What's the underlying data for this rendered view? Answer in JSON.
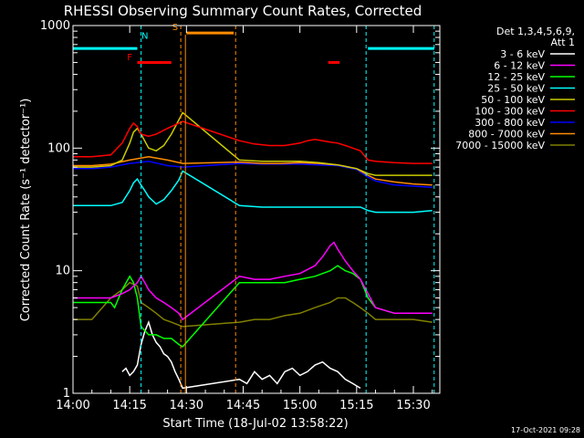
{
  "chart_data": {
    "type": "line",
    "title": "RHESSI Observing Summary Count Rates, Corrected",
    "xlabel": "Start Time (18-Jul-02 13:58:22)",
    "ylabel": "Corrected Count Rate (s⁻¹ detector⁻¹)",
    "x_units": "minutes since 14:00",
    "xlim": [
      0,
      97
    ],
    "ylim": [
      1,
      1000
    ],
    "yscale": "log",
    "x_ticks": [
      {
        "value": 0,
        "label": "14:00"
      },
      {
        "value": 15,
        "label": "14:15"
      },
      {
        "value": 30,
        "label": "14:30"
      },
      {
        "value": 45,
        "label": "14:45"
      },
      {
        "value": 60,
        "label": "15:00"
      },
      {
        "value": 75,
        "label": "15:15"
      },
      {
        "value": 90,
        "label": "15:30"
      }
    ],
    "y_ticks": [
      {
        "value": 1,
        "label": "1"
      },
      {
        "value": 10,
        "label": "10"
      },
      {
        "value": 100,
        "label": "100"
      },
      {
        "value": 1000,
        "label": "1000"
      }
    ],
    "legend_header": [
      "Det 1,3,4,5,6,9,",
      "Att 1"
    ],
    "legend_placement": "right",
    "timestamp": "17-Oct-2021 09:28",
    "gaps": [
      [
        29,
        43
      ]
    ],
    "vlines": [
      {
        "x": 18,
        "color": "#00ffff"
      },
      {
        "x": 77.5,
        "color": "#00ffff"
      },
      {
        "x": 95.5,
        "color": "#00ffff"
      },
      {
        "x": 28.5,
        "color": "#ff8c00"
      },
      {
        "x": 43,
        "color": "#ff8c00"
      }
    ],
    "annotations": [
      {
        "label": "N",
        "x": 19,
        "y": 780,
        "color": "#00ffff"
      },
      {
        "label": "F",
        "x": 15,
        "y": 520,
        "color": "#ff0000"
      },
      {
        "label": "S",
        "x": 27,
        "y": 920,
        "color": "#ff8c00"
      }
    ],
    "bars": [
      {
        "name": "N",
        "color": "#00ffff",
        "x1": 0,
        "x2": 17,
        "y": 650
      },
      {
        "name": "N",
        "color": "#00ffff",
        "x1": 78,
        "x2": 95.5,
        "y": 650
      },
      {
        "name": "F",
        "color": "#ff0000",
        "x1": 17,
        "x2": 26,
        "y": 500
      },
      {
        "name": "F",
        "color": "#ff0000",
        "x1": 67.5,
        "x2": 70.5,
        "y": 500
      },
      {
        "name": "S",
        "color": "#ff8c00",
        "x1": 30,
        "x2": 42.5,
        "y": 870
      }
    ],
    "series": [
      {
        "name": "3 - 6 keV",
        "color": "#ffffff",
        "x": [
          13,
          14,
          15,
          16,
          17,
          18,
          19,
          20,
          21,
          22,
          23,
          24,
          25,
          26,
          27,
          28,
          29,
          44,
          46,
          48,
          50,
          52,
          54,
          56,
          58,
          60,
          62,
          64,
          66,
          68,
          70,
          72,
          74,
          76
        ],
        "y": [
          1.5,
          1.6,
          1.4,
          1.5,
          1.7,
          2.5,
          3.2,
          3.8,
          3.0,
          2.6,
          2.4,
          2.1,
          2.0,
          1.8,
          1.5,
          1.3,
          1.1,
          1.3,
          1.2,
          1.5,
          1.3,
          1.4,
          1.2,
          1.5,
          1.6,
          1.4,
          1.5,
          1.7,
          1.8,
          1.6,
          1.5,
          1.3,
          1.2,
          1.1
        ]
      },
      {
        "name": "6 - 12 keV",
        "color": "#ff00ff",
        "x": [
          0,
          5,
          10,
          13,
          15,
          17,
          18,
          19,
          20,
          22,
          24,
          26,
          28,
          29,
          44,
          48,
          52,
          56,
          60,
          64,
          66,
          68,
          69,
          70,
          72,
          74,
          76,
          78,
          80,
          85,
          90,
          95
        ],
        "y": [
          6,
          6,
          6,
          6.5,
          7,
          8,
          9,
          8,
          7,
          6,
          5.5,
          5,
          4.5,
          4,
          9,
          8.5,
          8.5,
          9,
          9.5,
          11,
          13,
          16,
          17,
          15,
          12,
          10,
          8.5,
          6.5,
          5,
          4.5,
          4.5,
          4.5
        ]
      },
      {
        "name": "12 - 25 keV",
        "color": "#00ff00",
        "x": [
          0,
          5,
          10,
          11,
          13,
          15,
          16,
          17,
          18,
          20,
          22,
          24,
          26,
          28,
          29,
          44,
          48,
          52,
          56,
          60,
          64,
          68,
          70,
          72,
          74,
          76,
          78,
          80,
          85,
          90,
          95
        ],
        "y": [
          5.5,
          5.5,
          5.5,
          5,
          7,
          9,
          8,
          6,
          3.5,
          3,
          3,
          2.8,
          2.8,
          2.5,
          2.4,
          8,
          8,
          8,
          8,
          8.5,
          9,
          10,
          11,
          10,
          9.5,
          8.5,
          6,
          5,
          4.5,
          4.5,
          4.5
        ]
      },
      {
        "name": "25 - 50 keV",
        "color": "#00ffff",
        "x": [
          0,
          5,
          10,
          13,
          15,
          16,
          17,
          18,
          19,
          20,
          22,
          24,
          26,
          28,
          29,
          44,
          50,
          55,
          60,
          65,
          70,
          75,
          76,
          78,
          80,
          85,
          90,
          95
        ],
        "y": [
          34,
          34,
          34,
          36,
          45,
          52,
          56,
          50,
          45,
          40,
          35,
          38,
          45,
          55,
          65,
          34,
          33,
          33,
          33,
          33,
          33,
          33,
          33,
          31,
          30,
          30,
          30,
          31
        ]
      },
      {
        "name": "50 - 100 keV",
        "color": "#cccc00",
        "x": [
          0,
          5,
          10,
          13,
          15,
          16,
          17,
          18,
          20,
          22,
          24,
          26,
          28,
          29,
          44,
          50,
          55,
          60,
          65,
          70,
          75,
          78,
          80,
          85,
          90,
          95
        ],
        "y": [
          70,
          70,
          72,
          80,
          110,
          135,
          145,
          130,
          100,
          95,
          105,
          130,
          170,
          195,
          80,
          78,
          78,
          78,
          76,
          73,
          68,
          62,
          60,
          60,
          60,
          60
        ]
      },
      {
        "name": "100 - 300 keV",
        "color": "#ff0000",
        "x": [
          0,
          5,
          10,
          13,
          15,
          16,
          17,
          18,
          20,
          22,
          24,
          26,
          28,
          29,
          44,
          48,
          52,
          56,
          60,
          62,
          64,
          66,
          68,
          70,
          72,
          74,
          76,
          78,
          80,
          85,
          90,
          95
        ],
        "y": [
          85,
          85,
          88,
          110,
          145,
          160,
          150,
          130,
          125,
          130,
          140,
          150,
          160,
          165,
          115,
          108,
          105,
          105,
          110,
          115,
          118,
          115,
          112,
          110,
          105,
          100,
          95,
          80,
          78,
          76,
          75,
          75
        ]
      },
      {
        "name": "300 - 800 keV",
        "color": "#0000ff",
        "x": [
          0,
          5,
          10,
          15,
          20,
          25,
          29,
          44,
          50,
          55,
          60,
          65,
          70,
          75,
          78,
          80,
          85,
          90,
          95
        ],
        "y": [
          68,
          68,
          70,
          75,
          78,
          72,
          70,
          75,
          74,
          74,
          74,
          73,
          72,
          67,
          58,
          54,
          50,
          49,
          48
        ]
      },
      {
        "name": "800 - 7000 keV",
        "color": "#ff8c00",
        "x": [
          0,
          5,
          10,
          15,
          20,
          25,
          29,
          44,
          50,
          55,
          60,
          65,
          70,
          75,
          78,
          80,
          85,
          90,
          95
        ],
        "y": [
          72,
          72,
          74,
          80,
          85,
          80,
          75,
          77,
          75,
          75,
          76,
          75,
          73,
          68,
          60,
          56,
          53,
          51,
          50
        ]
      },
      {
        "name": "7000 - 15000 keV",
        "color": "#808000",
        "x": [
          0,
          5,
          10,
          13,
          15,
          17,
          18,
          20,
          22,
          24,
          26,
          28,
          29,
          44,
          48,
          52,
          56,
          60,
          64,
          68,
          70,
          72,
          74,
          76,
          78,
          80,
          85,
          90,
          95
        ],
        "y": [
          4,
          4,
          6,
          7,
          8,
          7.5,
          5.5,
          5,
          4.5,
          4,
          3.8,
          3.6,
          3.5,
          3.8,
          4,
          4,
          4.3,
          4.5,
          5,
          5.5,
          6,
          6,
          5.5,
          5,
          4.5,
          4,
          4,
          4,
          3.8
        ]
      }
    ]
  }
}
